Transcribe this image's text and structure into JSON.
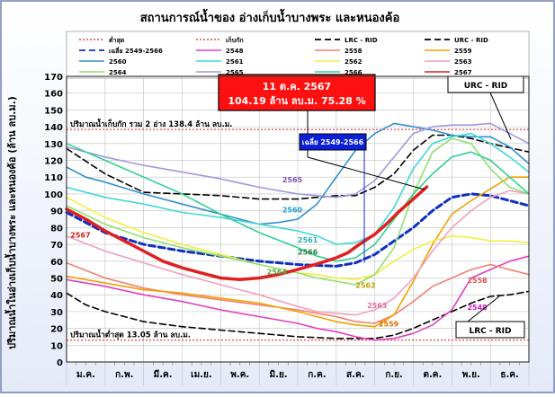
{
  "chart_data": {
    "type": "line",
    "title": "สถานการณ์น้ำของ อ่างเก็บน้ำบางพระ และหนองค้อ",
    "ylabel": "ปริมาณน้ำในอ่างเก็บน้ำบางพระ และหนองค้อ (ล้าน ลบ.ม.)",
    "xlabel": "",
    "ylim": [
      0,
      170
    ],
    "yticks": [
      0,
      10,
      20,
      30,
      40,
      50,
      60,
      70,
      80,
      90,
      100,
      110,
      120,
      130,
      140,
      150,
      160,
      170
    ],
    "months": [
      "ม.ค.",
      "ก.พ.",
      "มี.ค.",
      "เม.ย.",
      "พ.ค.",
      "มิ.ย.",
      "ก.ค.",
      "ส.ค.",
      "ก.ย.",
      "ต.ค.",
      "พ.ย.",
      "ธ.ค."
    ],
    "grid": true,
    "legend": {
      "position": "top",
      "entries": [
        {
          "label": "ต่ำสุด",
          "color": "#e8404a",
          "style": "dotted"
        },
        {
          "label": "เก็บกัก",
          "color": "#e8404a",
          "style": "dotted"
        },
        {
          "label": "LRC - RID",
          "color": "#000000",
          "style": "dashed"
        },
        {
          "label": "URC - RID",
          "color": "#000000",
          "style": "dashed"
        },
        {
          "label": "เฉลี่ย 2549-2566",
          "color": "#1030c0",
          "style": "dashed"
        },
        {
          "label": "2548",
          "color": "#e040c0",
          "style": "solid"
        },
        {
          "label": "2558",
          "color": "#f08070",
          "style": "solid"
        },
        {
          "label": "2559",
          "color": "#f0a000",
          "style": "solid"
        },
        {
          "label": "2560",
          "color": "#3090d0",
          "style": "solid"
        },
        {
          "label": "2561",
          "color": "#40d8d8",
          "style": "solid"
        },
        {
          "label": "2562",
          "color": "#f0f040",
          "style": "solid"
        },
        {
          "label": "2563",
          "color": "#f0a0c0",
          "style": "solid"
        },
        {
          "label": "2564",
          "color": "#90e070",
          "style": "solid"
        },
        {
          "label": "2565",
          "color": "#a098e0",
          "style": "solid"
        },
        {
          "label": "2566",
          "color": "#30d090",
          "style": "solid"
        },
        {
          "label": "2567",
          "color": "#e02020",
          "style": "solid"
        }
      ]
    },
    "reference_lines": [
      {
        "name": "เก็บกัก",
        "value": 138.4,
        "label": "ปริมาณน้ำเก็บกัก รวม 2 อ่าง 138.4 ล้าน ลบ.ม.",
        "color": "#e8404a"
      },
      {
        "name": "ต่ำสุด",
        "value": 13.05,
        "label": "ปริมาณน้ำต่ำสุด 13.05 ล้าน ลบ.ม.",
        "color": "#e8404a"
      }
    ],
    "annotations": {
      "current_date": "11 ต.ค. 2567",
      "current_value": "104.19 ล้าน ลบ.ม. 75.28 %",
      "avg_box": "เฉลี่ย 2549-2566",
      "urc_box": "URC - RID",
      "lrc_box": "LRC - RID"
    },
    "series": [
      {
        "name": "URC - RID",
        "color": "#000000",
        "style": "dashed",
        "width": 1.6,
        "x": [
          0,
          1,
          2,
          3,
          4,
          5,
          6,
          7,
          7.5,
          8,
          8.5,
          9,
          9.5,
          10,
          10.5,
          11,
          12
        ],
        "y": [
          127,
          112,
          101,
          100,
          99,
          97,
          97,
          99,
          99,
          104,
          112,
          126,
          135,
          135,
          133,
          130,
          125
        ]
      },
      {
        "name": "LRC - RID",
        "color": "#000000",
        "style": "dashed",
        "width": 1.6,
        "x": [
          0,
          0.5,
          1,
          2,
          3,
          4,
          5,
          6,
          7,
          8,
          8.5,
          9,
          9.5,
          10,
          10.5,
          11,
          11.5,
          12
        ],
        "y": [
          41,
          34,
          30,
          24,
          21,
          19,
          17,
          15,
          14,
          14,
          16,
          20,
          25,
          30,
          35,
          39,
          40,
          42
        ]
      },
      {
        "name": "เฉลี่ย 2549-2566",
        "color": "#1030c0",
        "style": "dashed",
        "width": 3,
        "x": [
          0,
          1,
          2,
          3,
          4,
          5,
          6,
          7,
          7.5,
          8,
          8.5,
          9,
          9.5,
          10,
          10.5,
          11,
          12
        ],
        "y": [
          89,
          77,
          70,
          66,
          63,
          60,
          58,
          57,
          59,
          64,
          72,
          80,
          90,
          98,
          100,
          99,
          93
        ]
      },
      {
        "name": "2548",
        "color": "#e040c0",
        "style": "solid",
        "width": 1.6,
        "x": [
          0,
          1,
          2,
          3,
          4,
          5,
          6,
          6.5,
          7,
          7.5,
          8,
          8.5,
          9,
          9.5,
          10,
          10.5,
          11,
          11.5,
          12
        ],
        "y": [
          49,
          45,
          40,
          36,
          31,
          27,
          23,
          20,
          18,
          15,
          13,
          14,
          17,
          22,
          31,
          50,
          55,
          60,
          63
        ]
      },
      {
        "name": "2558",
        "color": "#f08070",
        "style": "solid",
        "width": 1.6,
        "x": [
          0,
          1,
          2,
          3,
          4,
          5,
          6,
          6.5,
          7,
          7.5,
          8,
          8.5,
          9,
          9.5,
          10,
          10.5,
          11,
          11.5,
          12
        ],
        "y": [
          59,
          50,
          44,
          40,
          37,
          34,
          31,
          29,
          27,
          24,
          23,
          28,
          36,
          45,
          50,
          55,
          58,
          55,
          52
        ]
      },
      {
        "name": "2559",
        "color": "#f0a000",
        "style": "solid",
        "width": 1.6,
        "x": [
          0,
          1,
          2,
          3,
          4,
          5,
          6,
          6.5,
          7,
          7.5,
          8,
          8.5,
          9,
          9.5,
          10,
          10.5,
          11,
          11.5,
          12
        ],
        "y": [
          51,
          47,
          43,
          41,
          38,
          35,
          30,
          27,
          24,
          22,
          21,
          28,
          48,
          70,
          88,
          96,
          103,
          110,
          110
        ]
      },
      {
        "name": "2560",
        "color": "#3090d0",
        "style": "solid",
        "width": 1.6,
        "x": [
          0,
          0.5,
          1,
          2,
          3,
          4,
          5,
          5.5,
          6,
          6.5,
          7,
          7.5,
          8,
          8.5,
          9,
          9.5,
          10,
          10.5,
          11,
          11.5,
          12
        ],
        "y": [
          116,
          110,
          107,
          100,
          94,
          88,
          82,
          83,
          85,
          94,
          110,
          126,
          136,
          142,
          140,
          138,
          135,
          134,
          134,
          128,
          118
        ]
      },
      {
        "name": "2561",
        "color": "#40d8d8",
        "style": "solid",
        "width": 1.6,
        "x": [
          0,
          1,
          2,
          3,
          4,
          5,
          5.5,
          6,
          6.5,
          7,
          7.5,
          8,
          8.5,
          9,
          9.5,
          10,
          10.5,
          11,
          11.5,
          12
        ],
        "y": [
          104,
          98,
          94,
          89,
          86,
          82,
          80,
          78,
          75,
          70,
          71,
          76,
          92,
          115,
          130,
          134,
          136,
          130,
          122,
          113
        ]
      },
      {
        "name": "2562",
        "color": "#f0f040",
        "style": "solid",
        "width": 1.6,
        "x": [
          0,
          1,
          2,
          3,
          4,
          5,
          6,
          6.5,
          7,
          7.5,
          8,
          8.5,
          9,
          9.5,
          10,
          10.5,
          11,
          11.5,
          12
        ],
        "y": [
          98,
          86,
          77,
          70,
          64,
          58,
          53,
          52,
          50,
          49,
          52,
          60,
          67,
          72,
          75,
          74,
          72,
          72,
          71
        ]
      },
      {
        "name": "2563",
        "color": "#f0a0c0",
        "style": "solid",
        "width": 1.6,
        "x": [
          0,
          1,
          2,
          3,
          4,
          5,
          6,
          6.5,
          7,
          7.5,
          8,
          8.5,
          9,
          9.5,
          10,
          10.5,
          11,
          11.5,
          12
        ],
        "y": [
          75,
          66,
          59,
          52,
          46,
          40,
          33,
          30,
          29,
          28,
          31,
          38,
          50,
          66,
          80,
          90,
          98,
          102,
          100
        ]
      },
      {
        "name": "2564",
        "color": "#90e070",
        "style": "solid",
        "width": 1.6,
        "x": [
          0,
          1,
          2,
          3,
          4,
          5,
          6,
          6.5,
          7,
          7.5,
          8,
          8.5,
          9,
          9.5,
          10,
          10.5,
          11,
          11.5,
          12
        ],
        "y": [
          93,
          82,
          74,
          68,
          63,
          58,
          53,
          50,
          48,
          46,
          52,
          68,
          100,
          125,
          133,
          130,
          115,
          104,
          100
        ]
      },
      {
        "name": "2565",
        "color": "#a098e0",
        "style": "solid",
        "width": 1.6,
        "x": [
          0,
          1,
          2,
          3,
          4,
          5,
          6,
          6.5,
          7,
          7.5,
          8,
          8.5,
          9,
          9.5,
          10,
          10.5,
          11,
          11.5,
          12
        ],
        "y": [
          128,
          122,
          117,
          113,
          109,
          104,
          100,
          99,
          98,
          100,
          108,
          122,
          136,
          140,
          141,
          141,
          142,
          136,
          130
        ]
      },
      {
        "name": "2566",
        "color": "#30d090",
        "style": "solid",
        "width": 1.6,
        "x": [
          0,
          1,
          2,
          3,
          4,
          5,
          6,
          6.5,
          7,
          7.5,
          8,
          8.5,
          9,
          9.5,
          10,
          10.5,
          11,
          11.5,
          12
        ],
        "y": [
          130,
          120,
          110,
          100,
          88,
          77,
          68,
          63,
          60,
          62,
          70,
          85,
          100,
          112,
          122,
          125,
          120,
          110,
          100
        ]
      },
      {
        "name": "2567",
        "color": "#e02020",
        "style": "solid",
        "width": 3.5,
        "x": [
          0,
          0.5,
          1,
          1.5,
          2,
          2.5,
          3,
          3.5,
          4,
          4.5,
          5,
          5.5,
          6,
          6.3,
          6.6,
          7,
          7.3,
          7.6,
          8,
          8.3,
          8.6,
          9,
          9.35
        ],
        "y": [
          91,
          85,
          78,
          72,
          66,
          60,
          56,
          53,
          50,
          49,
          50,
          52,
          55,
          57,
          59,
          62,
          65,
          70,
          76,
          82,
          89,
          97,
          104.19
        ]
      }
    ],
    "series_labels": [
      {
        "name": "2565",
        "text": "2565",
        "color": "#8050b0",
        "x": 5.6,
        "y": 107
      },
      {
        "name": "2560",
        "text": "2560",
        "color": "#20a0d0",
        "x": 5.6,
        "y": 89
      },
      {
        "name": "2561",
        "text": "2561",
        "color": "#30b0b0",
        "x": 6.0,
        "y": 71
      },
      {
        "name": "2566",
        "text": "2566",
        "color": "#208040",
        "x": 6.0,
        "y": 64
      },
      {
        "name": "2564",
        "text": "2564",
        "color": "#60a040",
        "x": 5.2,
        "y": 52
      },
      {
        "name": "2567",
        "text": "2567",
        "color": "#d02020",
        "x": 0.1,
        "y": 74
      },
      {
        "name": "2562",
        "text": "2562",
        "color": "#c0a000",
        "x": 7.5,
        "y": 44
      },
      {
        "name": "2563",
        "text": "2563",
        "color": "#e070a0",
        "x": 7.8,
        "y": 32
      },
      {
        "name": "2559",
        "text": "2559",
        "color": "#e07000",
        "x": 8.1,
        "y": 21
      },
      {
        "name": "2558",
        "text": "2558",
        "color": "#e05050",
        "x": 10.4,
        "y": 47
      },
      {
        "name": "2548",
        "text": "2548",
        "color": "#d020c0",
        "x": 10.4,
        "y": 31
      }
    ]
  }
}
